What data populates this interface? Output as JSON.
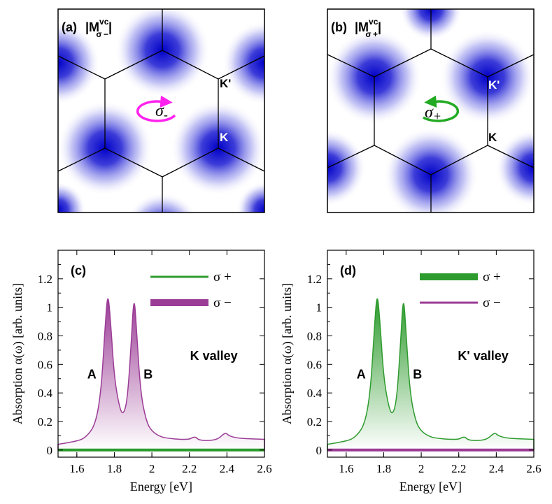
{
  "top_panels": [
    {
      "label": "(a)",
      "title_main": "|M",
      "title_sup": "vc",
      "title_sub": "σ −",
      "title_end": "|",
      "k_prime_label": "K'",
      "k_label": "K",
      "polarization_label": "σ",
      "polarization_sub": "-",
      "arrow_color": "#ff22ee",
      "lobe_orientation": "up"
    },
    {
      "label": "(b)",
      "title_main": "|M",
      "title_sup": "vc",
      "title_sub": "σ +",
      "title_end": "|",
      "k_prime_label": "K'",
      "k_label": "K",
      "polarization_label": "σ",
      "polarization_sub": "+",
      "arrow_color": "#22aa22",
      "lobe_orientation": "down"
    }
  ],
  "chart_data": [
    {
      "type": "area",
      "panel_label": "(c)",
      "xlabel": "Energy [eV]",
      "ylabel": "Absorption α(ω) [arb. units]",
      "xlim": [
        1.5,
        2.6
      ],
      "ylim": [
        -0.05,
        1.4
      ],
      "xticks": [
        "1.6",
        "1.8",
        "2",
        "2.2",
        "2.4",
        "2.6"
      ],
      "yticks": [
        "0",
        "0.2",
        "0.4",
        "0.6",
        "0.8",
        "1",
        "1.2"
      ],
      "annotations": {
        "peak_a": "A",
        "peak_b": "B",
        "valley": "K valley"
      },
      "legend": [
        {
          "name": "σ +",
          "color": "#2e9b2e",
          "thick": false
        },
        {
          "name": "σ −",
          "color": "#9b3c96",
          "thick": true
        }
      ],
      "legend_position": "top-right",
      "series": [
        {
          "name": "σ −",
          "color": "#9b3c96",
          "filled": true,
          "x": [
            1.5,
            1.6,
            1.65,
            1.7,
            1.73,
            1.75,
            1.765,
            1.78,
            1.8,
            1.83,
            1.85,
            1.87,
            1.89,
            1.905,
            1.92,
            1.94,
            1.97,
            2.0,
            2.05,
            2.1,
            2.15,
            2.2,
            2.22,
            2.235,
            2.25,
            2.3,
            2.35,
            2.38,
            2.395,
            2.41,
            2.45,
            2.5,
            2.6
          ],
          "y": [
            0.04,
            0.06,
            0.09,
            0.18,
            0.42,
            0.85,
            1.12,
            0.9,
            0.5,
            0.28,
            0.25,
            0.36,
            0.75,
            1.11,
            0.8,
            0.4,
            0.2,
            0.13,
            0.09,
            0.08,
            0.075,
            0.075,
            0.09,
            0.09,
            0.07,
            0.065,
            0.075,
            0.11,
            0.12,
            0.1,
            0.085,
            0.08,
            0.075
          ]
        },
        {
          "name": "σ +",
          "color": "#2e9b2e",
          "filled": false,
          "x": [
            1.5,
            2.6
          ],
          "y": [
            0,
            0
          ]
        }
      ]
    },
    {
      "type": "area",
      "panel_label": "(d)",
      "xlabel": "Energy [eV]",
      "ylabel": "Absorption α(ω) [arb. units]",
      "xlim": [
        1.5,
        2.6
      ],
      "ylim": [
        -0.05,
        1.4
      ],
      "xticks": [
        "1.6",
        "1.8",
        "2",
        "2.2",
        "2.4",
        "2.6"
      ],
      "yticks": [
        "0",
        "0.2",
        "0.4",
        "0.6",
        "0.8",
        "1",
        "1.2"
      ],
      "annotations": {
        "peak_a": "A",
        "peak_b": "B",
        "valley": "K' valley"
      },
      "legend": [
        {
          "name": "σ +",
          "color": "#2e9b2e",
          "thick": true
        },
        {
          "name": "σ −",
          "color": "#9b3c96",
          "thick": false
        }
      ],
      "legend_position": "top-right",
      "series": [
        {
          "name": "σ +",
          "color": "#2e9b2e",
          "filled": true,
          "x": [
            1.5,
            1.6,
            1.65,
            1.7,
            1.73,
            1.75,
            1.765,
            1.78,
            1.8,
            1.83,
            1.85,
            1.87,
            1.89,
            1.905,
            1.92,
            1.94,
            1.97,
            2.0,
            2.05,
            2.1,
            2.15,
            2.2,
            2.22,
            2.235,
            2.25,
            2.3,
            2.35,
            2.38,
            2.395,
            2.41,
            2.45,
            2.5,
            2.6
          ],
          "y": [
            0.04,
            0.06,
            0.09,
            0.18,
            0.42,
            0.85,
            1.12,
            0.9,
            0.5,
            0.28,
            0.25,
            0.36,
            0.75,
            1.11,
            0.8,
            0.4,
            0.2,
            0.13,
            0.09,
            0.08,
            0.075,
            0.075,
            0.09,
            0.09,
            0.07,
            0.065,
            0.075,
            0.11,
            0.12,
            0.1,
            0.085,
            0.08,
            0.075
          ]
        },
        {
          "name": "σ −",
          "color": "#9b3c96",
          "filled": false,
          "x": [
            1.5,
            2.6
          ],
          "y": [
            0,
            0
          ]
        }
      ]
    }
  ]
}
